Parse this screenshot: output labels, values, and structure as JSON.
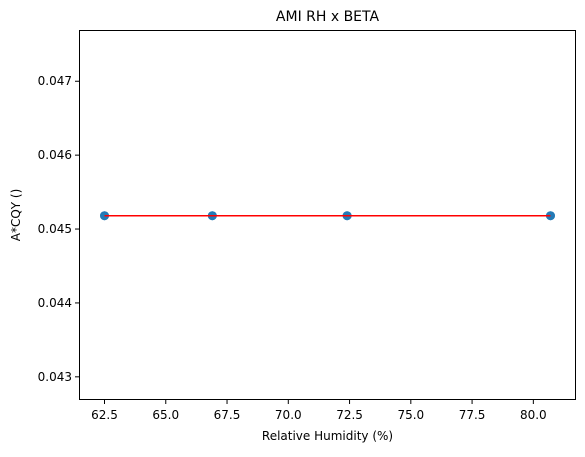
{
  "chart_data": {
    "type": "scatter",
    "title": "AMI RH x BETA",
    "xlabel": "Relative Humidity (%)",
    "ylabel": "A*CQY ()",
    "xlim": [
      61.5,
      81.7
    ],
    "ylim": [
      0.0427,
      0.04768
    ],
    "x_ticks": [
      62.5,
      65.0,
      67.5,
      70.0,
      72.5,
      75.0,
      77.5,
      80.0
    ],
    "x_tick_labels": [
      "62.5",
      "65.0",
      "67.5",
      "70.0",
      "72.5",
      "75.0",
      "77.5",
      "80.0"
    ],
    "y_ticks": [
      0.043,
      0.044,
      0.045,
      0.046,
      0.047
    ],
    "y_tick_labels": [
      "0.043",
      "0.044",
      "0.045",
      "0.046",
      "0.047"
    ],
    "grid": false,
    "series": [
      {
        "kind": "scatter",
        "color": "#1f77b4",
        "x": [
          62.5,
          62.5,
          66.9,
          66.9,
          72.4,
          72.4,
          80.7,
          80.7
        ],
        "y": [
          0.04518,
          0.04518,
          0.04518,
          0.04518,
          0.04518,
          0.04518,
          0.04518,
          0.04518
        ]
      },
      {
        "kind": "line",
        "color": "#ff0000",
        "x": [
          62.5,
          80.7
        ],
        "y": [
          0.04518,
          0.04518
        ]
      }
    ]
  }
}
